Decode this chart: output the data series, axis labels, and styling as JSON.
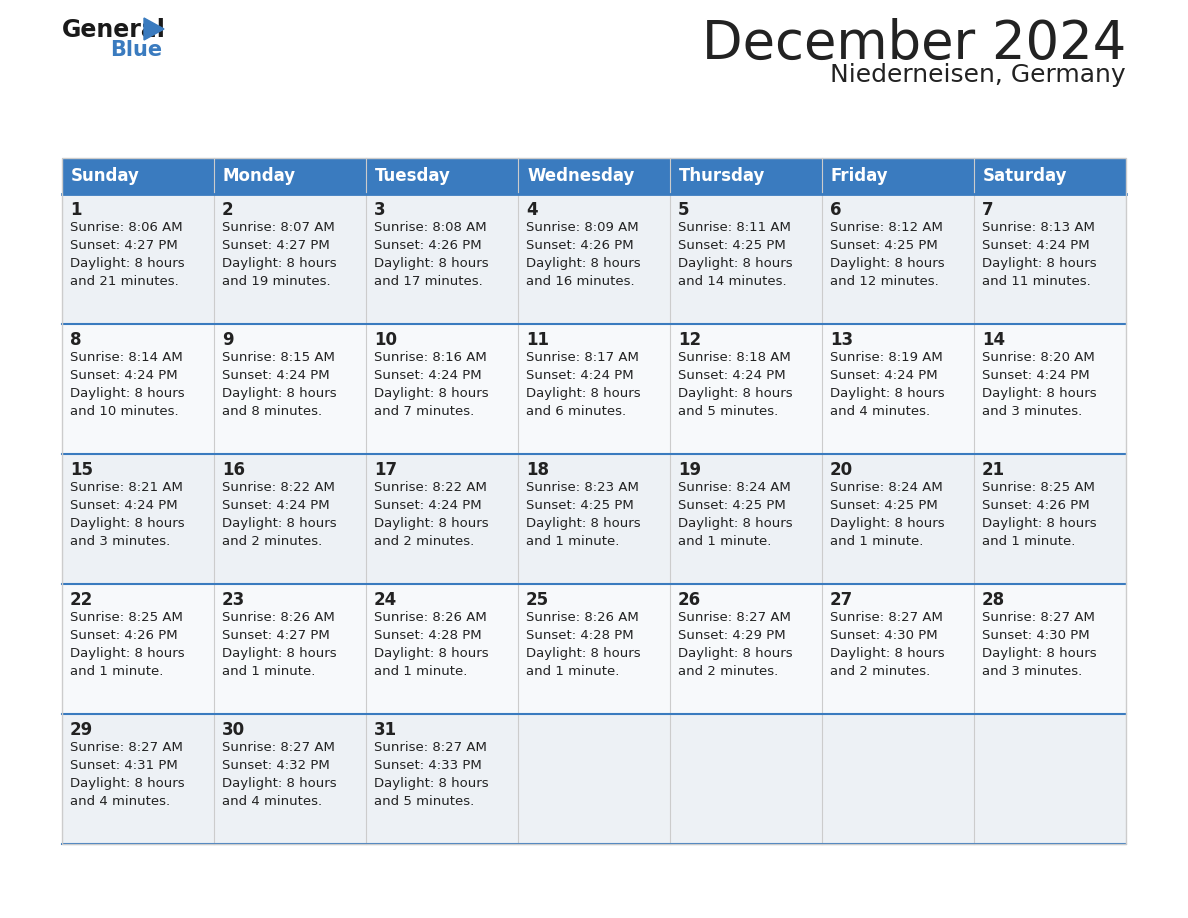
{
  "title": "December 2024",
  "subtitle": "Niederneisen, Germany",
  "header_color": "#3a7bbf",
  "header_text_color": "#ffffff",
  "row_bg_even": "#edf1f5",
  "row_bg_odd": "#f7f9fb",
  "border_color": "#3a7bbf",
  "grid_color": "#cccccc",
  "day_headers": [
    "Sunday",
    "Monday",
    "Tuesday",
    "Wednesday",
    "Thursday",
    "Friday",
    "Saturday"
  ],
  "weeks": [
    [
      {
        "day": 1,
        "sunrise": "8:06 AM",
        "sunset": "4:27 PM",
        "daylight_line2": "and 21 minutes."
      },
      {
        "day": 2,
        "sunrise": "8:07 AM",
        "sunset": "4:27 PM",
        "daylight_line2": "and 19 minutes."
      },
      {
        "day": 3,
        "sunrise": "8:08 AM",
        "sunset": "4:26 PM",
        "daylight_line2": "and 17 minutes."
      },
      {
        "day": 4,
        "sunrise": "8:09 AM",
        "sunset": "4:26 PM",
        "daylight_line2": "and 16 minutes."
      },
      {
        "day": 5,
        "sunrise": "8:11 AM",
        "sunset": "4:25 PM",
        "daylight_line2": "and 14 minutes."
      },
      {
        "day": 6,
        "sunrise": "8:12 AM",
        "sunset": "4:25 PM",
        "daylight_line2": "and 12 minutes."
      },
      {
        "day": 7,
        "sunrise": "8:13 AM",
        "sunset": "4:24 PM",
        "daylight_line2": "and 11 minutes."
      }
    ],
    [
      {
        "day": 8,
        "sunrise": "8:14 AM",
        "sunset": "4:24 PM",
        "daylight_line2": "and 10 minutes."
      },
      {
        "day": 9,
        "sunrise": "8:15 AM",
        "sunset": "4:24 PM",
        "daylight_line2": "and 8 minutes."
      },
      {
        "day": 10,
        "sunrise": "8:16 AM",
        "sunset": "4:24 PM",
        "daylight_line2": "and 7 minutes."
      },
      {
        "day": 11,
        "sunrise": "8:17 AM",
        "sunset": "4:24 PM",
        "daylight_line2": "and 6 minutes."
      },
      {
        "day": 12,
        "sunrise": "8:18 AM",
        "sunset": "4:24 PM",
        "daylight_line2": "and 5 minutes."
      },
      {
        "day": 13,
        "sunrise": "8:19 AM",
        "sunset": "4:24 PM",
        "daylight_line2": "and 4 minutes."
      },
      {
        "day": 14,
        "sunrise": "8:20 AM",
        "sunset": "4:24 PM",
        "daylight_line2": "and 3 minutes."
      }
    ],
    [
      {
        "day": 15,
        "sunrise": "8:21 AM",
        "sunset": "4:24 PM",
        "daylight_line2": "and 3 minutes."
      },
      {
        "day": 16,
        "sunrise": "8:22 AM",
        "sunset": "4:24 PM",
        "daylight_line2": "and 2 minutes."
      },
      {
        "day": 17,
        "sunrise": "8:22 AM",
        "sunset": "4:24 PM",
        "daylight_line2": "and 2 minutes."
      },
      {
        "day": 18,
        "sunrise": "8:23 AM",
        "sunset": "4:25 PM",
        "daylight_line2": "and 1 minute."
      },
      {
        "day": 19,
        "sunrise": "8:24 AM",
        "sunset": "4:25 PM",
        "daylight_line2": "and 1 minute."
      },
      {
        "day": 20,
        "sunrise": "8:24 AM",
        "sunset": "4:25 PM",
        "daylight_line2": "and 1 minute."
      },
      {
        "day": 21,
        "sunrise": "8:25 AM",
        "sunset": "4:26 PM",
        "daylight_line2": "and 1 minute."
      }
    ],
    [
      {
        "day": 22,
        "sunrise": "8:25 AM",
        "sunset": "4:26 PM",
        "daylight_line2": "and 1 minute."
      },
      {
        "day": 23,
        "sunrise": "8:26 AM",
        "sunset": "4:27 PM",
        "daylight_line2": "and 1 minute."
      },
      {
        "day": 24,
        "sunrise": "8:26 AM",
        "sunset": "4:28 PM",
        "daylight_line2": "and 1 minute."
      },
      {
        "day": 25,
        "sunrise": "8:26 AM",
        "sunset": "4:28 PM",
        "daylight_line2": "and 1 minute."
      },
      {
        "day": 26,
        "sunrise": "8:27 AM",
        "sunset": "4:29 PM",
        "daylight_line2": "and 2 minutes."
      },
      {
        "day": 27,
        "sunrise": "8:27 AM",
        "sunset": "4:30 PM",
        "daylight_line2": "and 2 minutes."
      },
      {
        "day": 28,
        "sunrise": "8:27 AM",
        "sunset": "4:30 PM",
        "daylight_line2": "and 3 minutes."
      }
    ],
    [
      {
        "day": 29,
        "sunrise": "8:27 AM",
        "sunset": "4:31 PM",
        "daylight_line2": "and 4 minutes."
      },
      {
        "day": 30,
        "sunrise": "8:27 AM",
        "sunset": "4:32 PM",
        "daylight_line2": "and 4 minutes."
      },
      {
        "day": 31,
        "sunrise": "8:27 AM",
        "sunset": "4:33 PM",
        "daylight_line2": "and 5 minutes."
      },
      null,
      null,
      null,
      null
    ]
  ],
  "text_color": "#222222",
  "title_fontsize": 38,
  "subtitle_fontsize": 18,
  "header_fontsize": 12,
  "day_num_fontsize": 12,
  "cell_fontsize": 9.5
}
